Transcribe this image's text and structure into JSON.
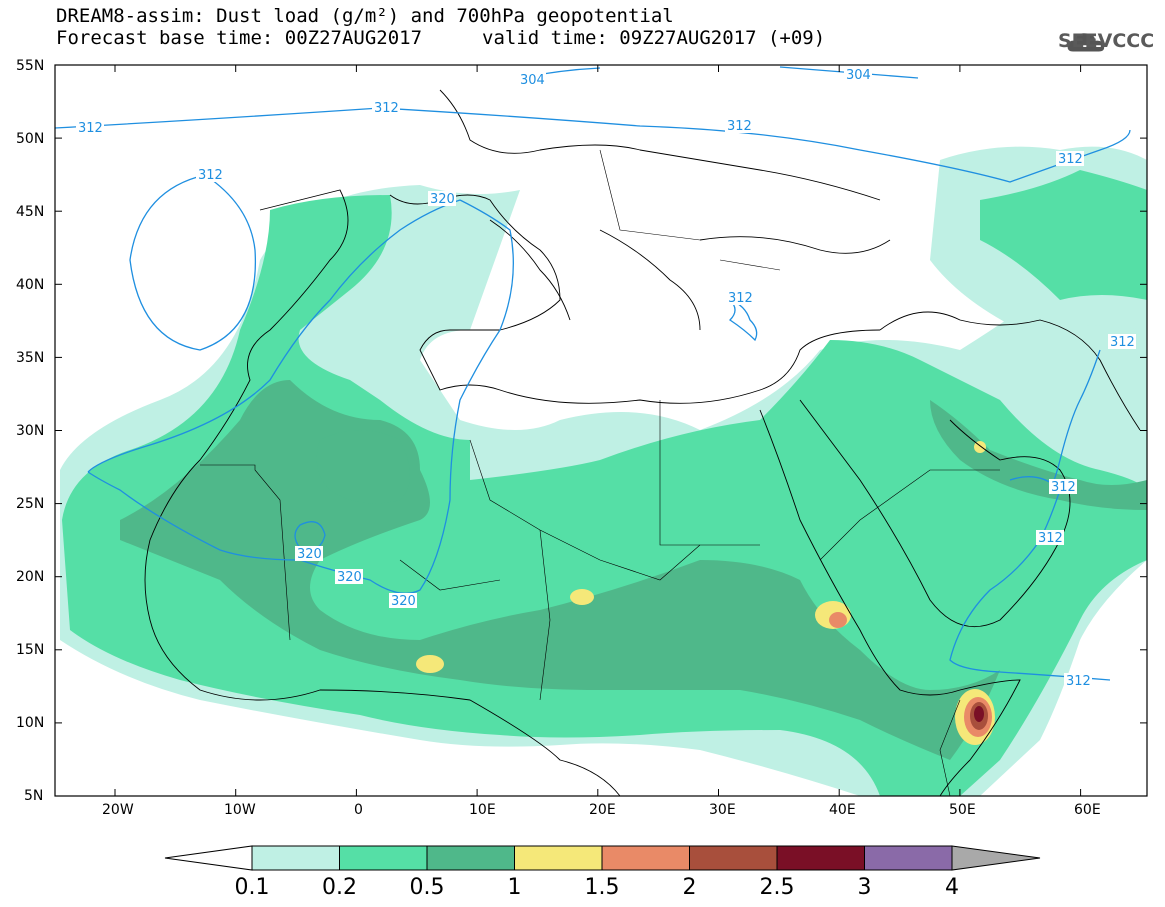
{
  "header": {
    "title_line1": "DREAM8-assim: Dust load (g/m²) and 700hPa geopotential",
    "title_line2": "Forecast base time: 00Z27AUG2017",
    "valid_time": "valid time: 09Z27AUG2017 (+09)"
  },
  "logo": {
    "text": "SEEVCCC",
    "icon": "cloud-logo-icon"
  },
  "map": {
    "lat_labels": [
      "55N",
      "50N",
      "45N",
      "40N",
      "35N",
      "30N",
      "25N",
      "20N",
      "15N",
      "10N",
      "5N"
    ],
    "lon_labels": [
      "20W",
      "10W",
      "0",
      "10E",
      "20E",
      "30E",
      "40E",
      "50E",
      "60E"
    ],
    "contour_labels": [
      "312",
      "304",
      "312",
      "312",
      "304",
      "320",
      "312",
      "312",
      "312",
      "320",
      "320",
      "320",
      "312",
      "312",
      "312",
      "312"
    ]
  },
  "colorbar": {
    "ticks": [
      "0.1",
      "0.2",
      "0.5",
      "1",
      "1.5",
      "2",
      "2.5",
      "3",
      "4"
    ],
    "colors": [
      "#bff0e4",
      "#55dfa6",
      "#4fb88a",
      "#f5e879",
      "#e98a67",
      "#a84f3c",
      "#7a0f26",
      "#8a6aa8"
    ],
    "under_color": "#ffffff",
    "over_color": "#a9a9a9"
  }
}
